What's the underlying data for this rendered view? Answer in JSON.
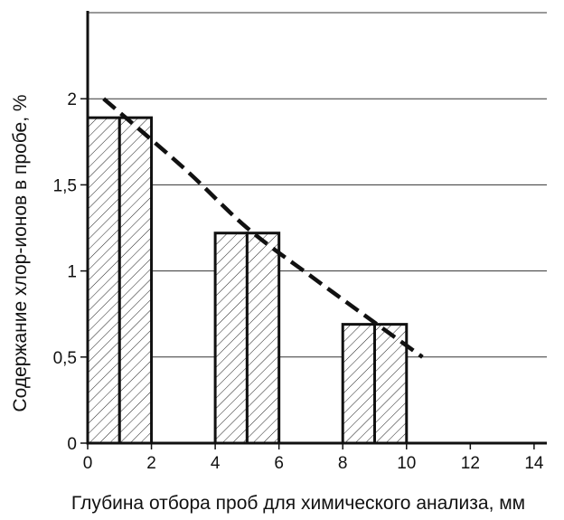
{
  "chart_data": {
    "type": "bar",
    "title": "",
    "xlabel": "Глубина отбора проб для химического анализа, мм",
    "ylabel": "Содержание хлор-ионов в пробе, %",
    "xlim": [
      0,
      14.4
    ],
    "ylim": [
      0,
      2.5
    ],
    "x_ticks": [
      {
        "value": 0,
        "label": "0"
      },
      {
        "value": 2,
        "label": "2"
      },
      {
        "value": 4,
        "label": "4"
      },
      {
        "value": 6,
        "label": "6"
      },
      {
        "value": 8,
        "label": "8"
      },
      {
        "value": 10,
        "label": "10"
      },
      {
        "value": 12,
        "label": "12"
      },
      {
        "value": 14,
        "label": "14"
      }
    ],
    "y_ticks": [
      {
        "value": 0,
        "label": "0"
      },
      {
        "value": 0.5,
        "label": "0,5"
      },
      {
        "value": 1,
        "label": "1"
      },
      {
        "value": 1.5,
        "label": "1,5"
      },
      {
        "value": 2,
        "label": "2"
      }
    ],
    "gridlines": [
      0.5,
      1,
      1.5,
      2,
      2.5
    ],
    "grid": "horizontal",
    "bars": [
      {
        "x0": 0,
        "x1": 1,
        "value": 1.89
      },
      {
        "x0": 1,
        "x1": 2,
        "value": 1.89
      },
      {
        "x0": 4,
        "x1": 5,
        "value": 1.22
      },
      {
        "x0": 5,
        "x1": 6,
        "value": 1.22
      },
      {
        "x0": 8,
        "x1": 9,
        "value": 0.69
      },
      {
        "x0": 9,
        "x1": 10,
        "value": 0.69
      }
    ],
    "bar_pattern": "diagonal-hatch",
    "trend_line": {
      "style": "dashed",
      "points": [
        [
          0.5,
          2.0
        ],
        [
          3,
          1.6
        ],
        [
          5,
          1.25
        ],
        [
          7,
          0.97
        ],
        [
          9,
          0.7
        ],
        [
          10.5,
          0.5
        ]
      ]
    }
  }
}
